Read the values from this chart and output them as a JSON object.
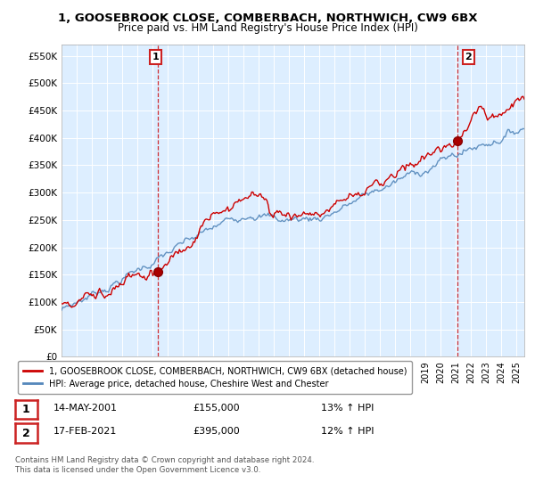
{
  "title": "1, GOOSEBROOK CLOSE, COMBERBACH, NORTHWICH, CW9 6BX",
  "subtitle": "Price paid vs. HM Land Registry's House Price Index (HPI)",
  "legend_line1": "1, GOOSEBROOK CLOSE, COMBERBACH, NORTHWICH, CW9 6BX (detached house)",
  "legend_line2": "HPI: Average price, detached house, Cheshire West and Chester",
  "annotation1_label": "1",
  "annotation1_date": "14-MAY-2001",
  "annotation1_price": "£155,000",
  "annotation1_hpi": "13% ↑ HPI",
  "annotation2_label": "2",
  "annotation2_date": "17-FEB-2021",
  "annotation2_price": "£395,000",
  "annotation2_hpi": "12% ↑ HPI",
  "footer": "Contains HM Land Registry data © Crown copyright and database right 2024.\nThis data is licensed under the Open Government Licence v3.0.",
  "red_color": "#cc0000",
  "blue_color": "#5588bb",
  "bg_color": "#ddeeff",
  "ylim_min": 0,
  "ylim_max": 570000,
  "yticks": [
    0,
    50000,
    100000,
    150000,
    200000,
    250000,
    300000,
    350000,
    400000,
    450000,
    500000,
    550000
  ],
  "ytick_labels": [
    "£0",
    "£50K",
    "£100K",
    "£150K",
    "£200K",
    "£250K",
    "£300K",
    "£350K",
    "£400K",
    "£450K",
    "£500K",
    "£550K"
  ],
  "sale1_x": 2001.37,
  "sale1_y": 155000,
  "sale2_x": 2021.12,
  "sale2_y": 395000,
  "xmin": 1995,
  "xmax": 2025.5
}
